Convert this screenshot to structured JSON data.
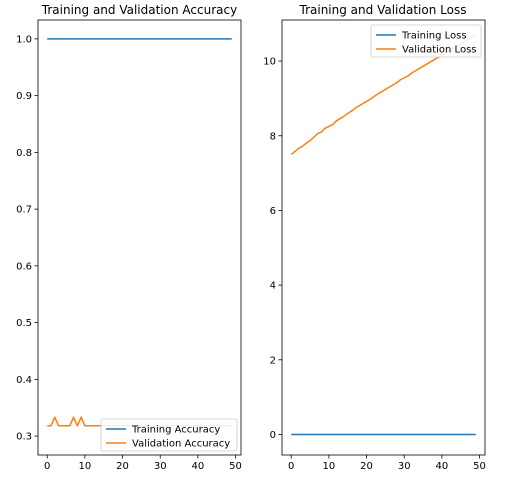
{
  "chart_data": [
    {
      "type": "line",
      "title": "Training and Validation Accuracy",
      "xlabel": "",
      "ylabel": "",
      "xlim": [
        -2.45,
        51.45
      ],
      "ylim": [
        0.2667,
        1.0333
      ],
      "xticks": [
        0,
        10,
        20,
        30,
        40,
        50
      ],
      "yticks": [
        0.3,
        0.4,
        0.5,
        0.6,
        0.7,
        0.8,
        0.9,
        1.0
      ],
      "ytick_labels": [
        "0.3",
        "0.4",
        "0.5",
        "0.6",
        "0.7",
        "0.8",
        "0.9",
        "1.0"
      ],
      "grid": false,
      "legend_position": "lower-right",
      "series": [
        {
          "name": "Training Accuracy",
          "color": "#1f77b4",
          "x": [
            0,
            49
          ],
          "y": [
            1.0,
            1.0
          ]
        },
        {
          "name": "Validation Accuracy",
          "color": "#ff7f0e",
          "x": [
            0,
            1,
            2,
            3,
            4,
            5,
            6,
            7,
            8,
            9,
            10,
            11,
            12,
            13,
            14,
            15,
            16,
            17,
            18,
            19,
            20,
            21,
            22,
            23,
            24,
            25,
            26,
            27,
            28,
            29,
            30,
            31,
            32,
            33,
            34,
            35,
            36,
            37,
            38,
            39,
            40,
            41,
            42,
            43,
            44,
            45,
            46,
            47,
            48,
            49
          ],
          "y": [
            0.3182,
            0.3182,
            0.3333,
            0.3182,
            0.3182,
            0.3182,
            0.3182,
            0.3333,
            0.3182,
            0.3333,
            0.3182,
            0.3182,
            0.3182,
            0.3182,
            0.3182,
            0.3182,
            0.3182,
            0.3182,
            0.3182,
            0.3182,
            0.3182,
            0.3182,
            0.3182,
            0.3182,
            0.3182,
            0.3182,
            0.3182,
            0.3182,
            0.3182,
            0.3182,
            0.3182,
            0.3182,
            0.3182,
            0.3182,
            0.3182,
            0.3182,
            0.3182,
            0.3182,
            0.3182,
            0.3182,
            0.3182,
            0.3182,
            0.3182,
            0.3182,
            0.3182,
            0.3182,
            0.3182,
            0.3182,
            0.3182,
            0.3182
          ]
        }
      ]
    },
    {
      "type": "line",
      "title": "Training and Validation Loss",
      "xlabel": "",
      "ylabel": "",
      "xlim": [
        -2.45,
        51.45
      ],
      "ylim": [
        -0.55,
        11.1
      ],
      "xticks": [
        0,
        10,
        20,
        30,
        40,
        50
      ],
      "yticks": [
        0,
        2,
        4,
        6,
        8,
        10
      ],
      "ytick_labels": [
        "0",
        "2",
        "4",
        "6",
        "8",
        "10"
      ],
      "grid": false,
      "legend_position": "top-right",
      "series": [
        {
          "name": "Training Loss",
          "color": "#1f77b4",
          "x": [
            0,
            49
          ],
          "y": [
            0.0,
            0.0
          ]
        },
        {
          "name": "Validation Loss",
          "color": "#ff7f0e",
          "x": [
            0,
            1,
            2,
            3,
            4,
            5,
            6,
            7,
            8,
            9,
            10,
            11,
            12,
            13,
            14,
            15,
            16,
            17,
            18,
            19,
            20,
            21,
            22,
            23,
            24,
            25,
            26,
            27,
            28,
            29,
            30,
            31,
            32,
            33,
            34,
            35,
            36,
            37,
            38,
            39,
            40,
            41,
            42,
            43,
            44,
            45,
            46,
            47,
            48,
            49
          ],
          "y": [
            7.5,
            7.58,
            7.66,
            7.72,
            7.8,
            7.87,
            7.96,
            8.06,
            8.1,
            8.2,
            8.25,
            8.3,
            8.4,
            8.46,
            8.52,
            8.6,
            8.66,
            8.74,
            8.8,
            8.86,
            8.92,
            8.98,
            9.05,
            9.12,
            9.18,
            9.24,
            9.3,
            9.36,
            9.42,
            9.5,
            9.55,
            9.6,
            9.68,
            9.74,
            9.8,
            9.86,
            9.92,
            9.98,
            10.04,
            10.1,
            10.16,
            10.22,
            10.28,
            10.34,
            10.4,
            10.46,
            10.52,
            10.58,
            10.64,
            10.7
          ]
        }
      ]
    }
  ]
}
